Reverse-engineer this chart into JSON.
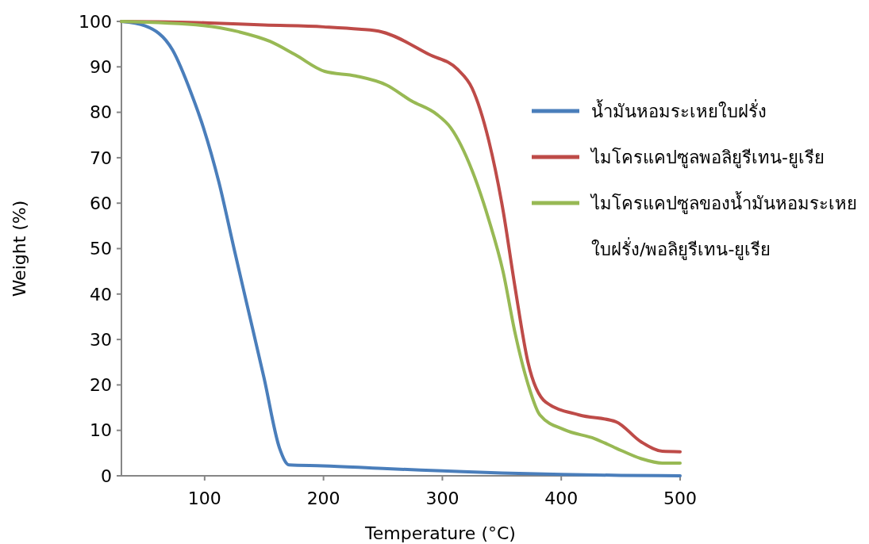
{
  "chart_data": {
    "type": "line",
    "xlabel": "Temperature (°C)",
    "ylabel": "Weight (%)",
    "xlim": [
      30,
      500
    ],
    "xticks": [
      100,
      200,
      300,
      400,
      500
    ],
    "ylim": [
      0,
      100
    ],
    "yticks": [
      0,
      10,
      20,
      30,
      40,
      50,
      60,
      70,
      80,
      90,
      100
    ],
    "grid": false,
    "legend": "right",
    "marker": "none",
    "line_style": "solid",
    "series": [
      {
        "name": "น้ำมันหอมระเหยใบฝรั่ง",
        "color": "#4a7ebb",
        "x": [
          30,
          50,
          73,
          89,
          99,
          112,
          125,
          135,
          150,
          163,
          171,
          200,
          250,
          300,
          350,
          400,
          450,
          500
        ],
        "values": [
          100,
          99,
          93.7,
          84,
          76.6,
          64.6,
          49.7,
          38.4,
          21.5,
          6.1,
          2.4,
          2.2,
          1.6,
          1.1,
          0.6,
          0.3,
          0.1,
          0
        ]
      },
      {
        "name": "ไมโครแคปซูลพอลิยูรีเทน-ยูเรีย",
        "color": "#be4b48",
        "x": [
          30,
          100,
          150,
          200,
          230,
          249,
          289,
          313,
          325,
          339,
          351,
          361,
          372,
          387,
          415,
          446,
          467,
          485,
          500
        ],
        "values": [
          100,
          99.7,
          99.2,
          98.8,
          98.3,
          97.7,
          92.7,
          89.4,
          85.3,
          73.8,
          58.5,
          41.7,
          25,
          16.2,
          13.4,
          11.9,
          7.5,
          5.4,
          5.3
        ]
      },
      {
        "name": "ไมโครแคปซูลของน้ำมันหอมระเหยใบฝรั่ง/พอลิยูรีเทน-ยูเรีย",
        "color": "#98b954",
        "x": [
          30,
          99,
          129,
          155,
          176,
          201,
          227,
          253,
          274,
          295,
          307,
          325,
          339,
          351,
          361,
          372,
          382,
          403,
          428,
          446,
          467,
          485,
          500
        ],
        "values": [
          100,
          99.1,
          97.7,
          95.6,
          92.7,
          89,
          88,
          86,
          82.5,
          79.6,
          76.6,
          67.2,
          56.4,
          45,
          31.6,
          20.2,
          13.4,
          10.1,
          8.2,
          6.1,
          3.8,
          2.8,
          2.8
        ]
      }
    ]
  }
}
